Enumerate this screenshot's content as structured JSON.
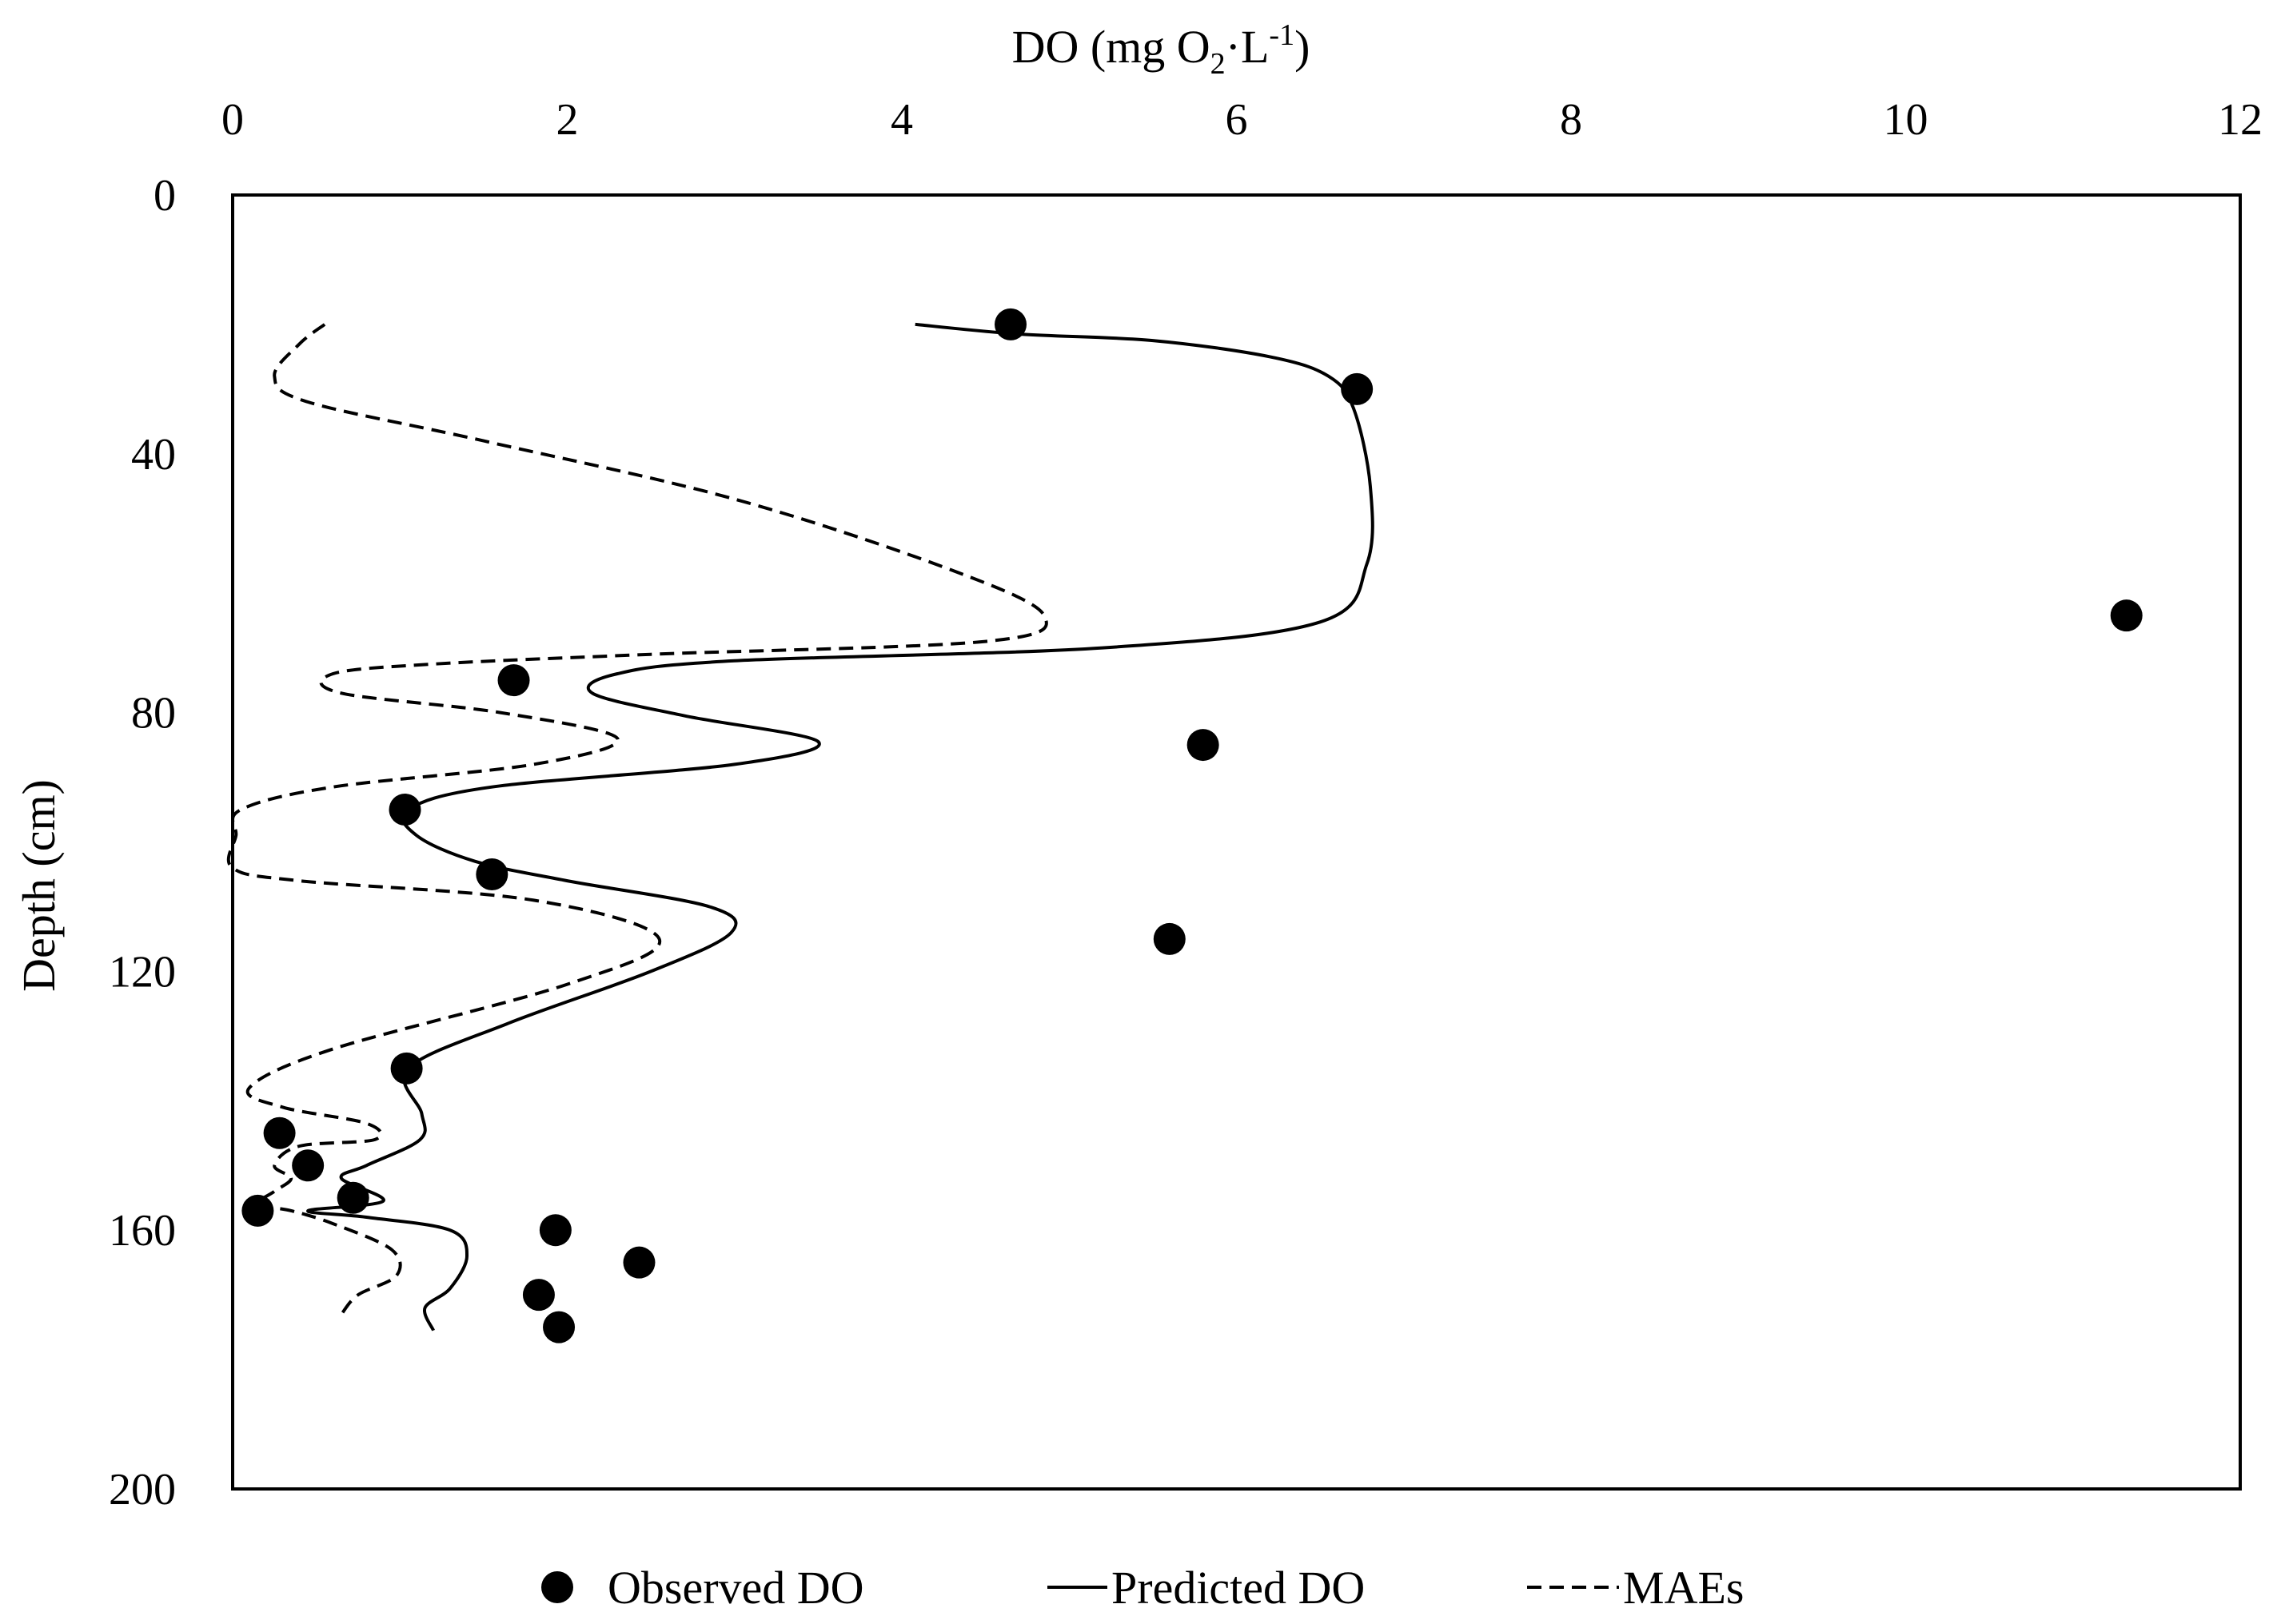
{
  "chart_data": {
    "type": "scatter",
    "title": "",
    "xlabel": {
      "main": "DO (mg O",
      "sub": "2",
      "mid": "·L",
      "sup": "-1",
      "end": ")"
    },
    "ylabel": "Depth (cm)",
    "xlim": [
      0,
      12
    ],
    "ylim": [
      0,
      200
    ],
    "y_inverted": true,
    "x_axis_position": "top",
    "xticks": [
      0,
      2,
      4,
      6,
      8,
      10,
      12
    ],
    "xtick_labels": [
      "0",
      "2",
      "4",
      "6",
      "8",
      "10",
      "12"
    ],
    "yticks": [
      0,
      40,
      80,
      120,
      160,
      200
    ],
    "ytick_labels": [
      "0",
      "40",
      "80",
      "120",
      "160",
      "200"
    ],
    "grid": false,
    "legend_position": "bottom",
    "series": [
      {
        "name": "Observed DO",
        "type": "scatter",
        "marker": "circle",
        "color": "#000000",
        "points": [
          {
            "x": 4.65,
            "y": 20
          },
          {
            "x": 6.72,
            "y": 30
          },
          {
            "x": 11.32,
            "y": 65
          },
          {
            "x": 1.68,
            "y": 75
          },
          {
            "x": 5.8,
            "y": 85
          },
          {
            "x": 1.03,
            "y": 95
          },
          {
            "x": 1.55,
            "y": 105
          },
          {
            "x": 5.6,
            "y": 115
          },
          {
            "x": 1.04,
            "y": 135
          },
          {
            "x": 0.28,
            "y": 145
          },
          {
            "x": 0.45,
            "y": 150
          },
          {
            "x": 0.72,
            "y": 155
          },
          {
            "x": 0.15,
            "y": 157
          },
          {
            "x": 1.93,
            "y": 160
          },
          {
            "x": 2.43,
            "y": 165
          },
          {
            "x": 1.83,
            "y": 170
          },
          {
            "x": 1.95,
            "y": 175
          }
        ]
      },
      {
        "name": "Predicted DO",
        "type": "line",
        "style": "solid",
        "color": "#000000",
        "points": [
          {
            "x": 4.08,
            "y": 20
          },
          {
            "x": 4.7,
            "y": 21.5
          },
          {
            "x": 5.5,
            "y": 22.5
          },
          {
            "x": 6.2,
            "y": 25
          },
          {
            "x": 6.55,
            "y": 28
          },
          {
            "x": 6.7,
            "y": 33
          },
          {
            "x": 6.8,
            "y": 45
          },
          {
            "x": 6.78,
            "y": 57
          },
          {
            "x": 6.5,
            "y": 66
          },
          {
            "x": 5.2,
            "y": 70
          },
          {
            "x": 3.0,
            "y": 72
          },
          {
            "x": 2.3,
            "y": 74
          },
          {
            "x": 2.15,
            "y": 77
          },
          {
            "x": 2.7,
            "y": 80.5
          },
          {
            "x": 3.5,
            "y": 84.5
          },
          {
            "x": 3.0,
            "y": 88
          },
          {
            "x": 1.55,
            "y": 91.5
          },
          {
            "x": 1.05,
            "y": 95
          },
          {
            "x": 1.1,
            "y": 99
          },
          {
            "x": 1.45,
            "y": 103
          },
          {
            "x": 2.0,
            "y": 106
          },
          {
            "x": 2.85,
            "y": 110
          },
          {
            "x": 2.98,
            "y": 114
          },
          {
            "x": 2.5,
            "y": 120
          },
          {
            "x": 1.65,
            "y": 128
          },
          {
            "x": 1.05,
            "y": 135
          },
          {
            "x": 1.13,
            "y": 142
          },
          {
            "x": 1.12,
            "y": 146
          },
          {
            "x": 0.8,
            "y": 150
          },
          {
            "x": 0.65,
            "y": 152
          },
          {
            "x": 0.9,
            "y": 155.5
          },
          {
            "x": 0.45,
            "y": 157
          },
          {
            "x": 0.8,
            "y": 158
          },
          {
            "x": 1.3,
            "y": 160
          },
          {
            "x": 1.4,
            "y": 164
          },
          {
            "x": 1.3,
            "y": 169
          },
          {
            "x": 1.15,
            "y": 172
          },
          {
            "x": 1.2,
            "y": 175.5
          }
        ]
      },
      {
        "name": "MAEs",
        "type": "line",
        "style": "dashed",
        "color": "#000000",
        "points": [
          {
            "x": 0.55,
            "y": 20
          },
          {
            "x": 0.4,
            "y": 23
          },
          {
            "x": 0.25,
            "y": 28
          },
          {
            "x": 0.45,
            "y": 32
          },
          {
            "x": 1.5,
            "y": 38
          },
          {
            "x": 3.0,
            "y": 47
          },
          {
            "x": 4.3,
            "y": 58
          },
          {
            "x": 4.85,
            "y": 65
          },
          {
            "x": 4.5,
            "y": 69
          },
          {
            "x": 2.5,
            "y": 71
          },
          {
            "x": 1.2,
            "y": 72.5
          },
          {
            "x": 0.6,
            "y": 74
          },
          {
            "x": 0.65,
            "y": 77
          },
          {
            "x": 1.6,
            "y": 80
          },
          {
            "x": 2.3,
            "y": 84
          },
          {
            "x": 1.8,
            "y": 88
          },
          {
            "x": 0.6,
            "y": 91.5
          },
          {
            "x": 0.05,
            "y": 95
          },
          {
            "x": 0.02,
            "y": 99
          },
          {
            "x": 0.0,
            "y": 104
          },
          {
            "x": 0.4,
            "y": 106
          },
          {
            "x": 1.8,
            "y": 109
          },
          {
            "x": 2.55,
            "y": 115
          },
          {
            "x": 2.0,
            "y": 122
          },
          {
            "x": 0.6,
            "y": 132
          },
          {
            "x": 0.1,
            "y": 138
          },
          {
            "x": 0.3,
            "y": 141
          },
          {
            "x": 0.8,
            "y": 143.5
          },
          {
            "x": 0.85,
            "y": 146
          },
          {
            "x": 0.4,
            "y": 147
          },
          {
            "x": 0.25,
            "y": 150
          },
          {
            "x": 0.35,
            "y": 152
          },
          {
            "x": 0.25,
            "y": 154
          },
          {
            "x": 0.15,
            "y": 156
          },
          {
            "x": 0.35,
            "y": 157
          },
          {
            "x": 0.6,
            "y": 159
          },
          {
            "x": 0.95,
            "y": 163
          },
          {
            "x": 0.98,
            "y": 167
          },
          {
            "x": 0.75,
            "y": 170
          },
          {
            "x": 0.65,
            "y": 173
          }
        ]
      }
    ]
  },
  "legend": {
    "items": [
      {
        "label": "Observed DO"
      },
      {
        "label": "Predicted DO"
      },
      {
        "label": "MAEs"
      }
    ]
  }
}
